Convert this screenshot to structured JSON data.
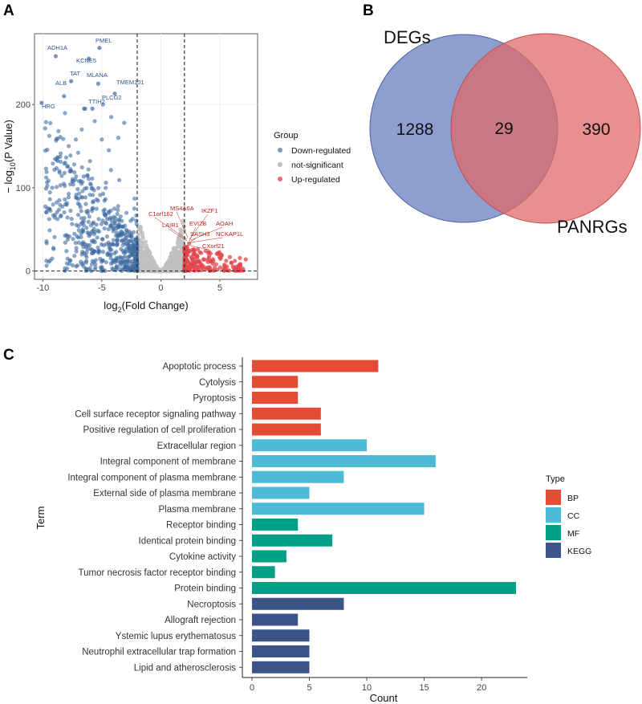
{
  "figure": {
    "panel_a": "A",
    "panel_b": "B",
    "panel_c": "C"
  },
  "chart_data": [
    {
      "type": "scatter",
      "id": "volcano",
      "xlabel_main": "log",
      "xlabel_sub": "2",
      "xlabel_rest": "(Fold Change)",
      "ylabel_prefix": "− log",
      "ylabel_sub": "10",
      "ylabel_rest": "(P Value)",
      "xlim": [
        -10.7,
        8.2
      ],
      "ylim": [
        -10,
        285
      ],
      "xticks": [
        -10,
        -5,
        0,
        5
      ],
      "yticks": [
        0,
        100,
        200
      ],
      "threshold_x": [
        -2,
        2
      ],
      "threshold_y": 0,
      "legend": {
        "title": "Group",
        "items": [
          {
            "label": "Down-regulated",
            "color": "#4f77a8"
          },
          {
            "label": "not-significant",
            "color": "#c0c0c0"
          },
          {
            "label": "Up-regulated",
            "color": "#e0474c"
          }
        ]
      },
      "labeled_genes_down": [
        {
          "name": "PMEL",
          "x": -5.2,
          "y": 268
        },
        {
          "name": "ADH1A",
          "x": -8.9,
          "y": 258
        },
        {
          "name": "KCNE5",
          "x": -6.1,
          "y": 255
        },
        {
          "name": "TAT",
          "x": -7.6,
          "y": 228
        },
        {
          "name": "MLANA",
          "x": -5.3,
          "y": 225
        },
        {
          "name": "ALB",
          "x": -8.2,
          "y": 210
        },
        {
          "name": "TMEM101",
          "x": -3.9,
          "y": 213
        },
        {
          "name": "PLCG2",
          "x": -5.8,
          "y": 195
        },
        {
          "name": "TTIH2",
          "x": -6.5,
          "y": 195
        },
        {
          "name": "HRG",
          "x": -10.1,
          "y": 202
        }
      ],
      "labeled_genes_up": [
        {
          "name": "MS4A6A",
          "x": 2.3,
          "y": 58
        },
        {
          "name": "IKZF1",
          "x": 2.5,
          "y": 57
        },
        {
          "name": "C1orf162",
          "x": 2.2,
          "y": 50
        },
        {
          "name": "LAIR1",
          "x": 2.2,
          "y": 42
        },
        {
          "name": "EVI2B",
          "x": 2.4,
          "y": 45
        },
        {
          "name": "AOAH",
          "x": 2.6,
          "y": 45
        },
        {
          "name": "SASH3",
          "x": 2.3,
          "y": 38
        },
        {
          "name": "NCKAP1L",
          "x": 2.5,
          "y": 38
        },
        {
          "name": "CXorf21",
          "x": 2.4,
          "y": 30
        }
      ]
    },
    {
      "type": "venn",
      "id": "venn",
      "sets": [
        {
          "name": "DEGs",
          "color": "#6d83c2",
          "only": 1288
        },
        {
          "name": "PANRGs",
          "color": "#e06a6a",
          "only": 390
        }
      ],
      "intersection": 29,
      "counts_text": [
        "1288",
        "29",
        "390"
      ]
    },
    {
      "type": "bar",
      "id": "enrichment",
      "orientation": "horizontal",
      "xlabel": "Count",
      "ylabel": "Term",
      "xlim": [
        0,
        24
      ],
      "xticks": [
        0,
        5,
        10,
        15,
        20
      ],
      "legend": {
        "title": "Type",
        "items": [
          {
            "label": "BP",
            "color": "#e64b35"
          },
          {
            "label": "CC",
            "color": "#4dbbd5"
          },
          {
            "label": "MF",
            "color": "#00a087"
          },
          {
            "label": "KEGG",
            "color": "#3c5488"
          }
        ]
      },
      "categories": [
        "Apoptotic process",
        "Cytolysis",
        "Pyroptosis",
        "Cell surface receptor signaling pathway",
        "Positive regulation of cell proliferation",
        "Extracellular region",
        "Integral component of membrane",
        "Integral component of plasma membrane",
        "External side of plasma membrane",
        "Plasma membrane",
        "Receptor binding",
        "Identical protein binding",
        "Cytokine activity",
        "Tumor necrosis factor receptor binding",
        "Protein binding",
        "Necroptosis",
        "Allograft rejection",
        "Ystemic lupus erythematosus",
        "Neutrophil extracellular trap formation",
        "Lipid and atherosclerosis"
      ],
      "values": [
        11,
        4,
        4,
        6,
        6,
        10,
        16,
        8,
        5,
        15,
        4,
        7,
        3,
        2,
        23,
        8,
        4,
        5,
        5,
        5
      ],
      "groups": [
        "BP",
        "BP",
        "BP",
        "BP",
        "BP",
        "CC",
        "CC",
        "CC",
        "CC",
        "CC",
        "MF",
        "MF",
        "MF",
        "MF",
        "MF",
        "KEGG",
        "KEGG",
        "KEGG",
        "KEGG",
        "KEGG"
      ]
    }
  ]
}
